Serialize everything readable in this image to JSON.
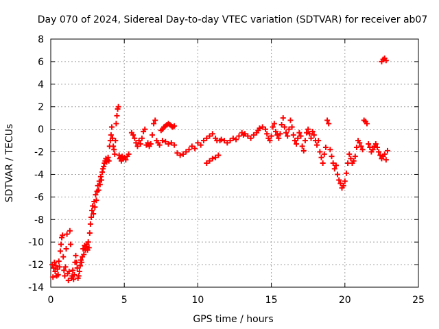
{
  "chart_data": {
    "type": "scatter",
    "title": "Day 070 of 2024, Sidereal Day-to-day VTEC variation (SDTVAR) for receiver ab07",
    "xlabel": "GPS time / hours",
    "ylabel": "SDTVAR / TECUs",
    "xlim": [
      0,
      25
    ],
    "ylim": [
      -14,
      8
    ],
    "xticks": [
      0,
      5,
      10,
      15,
      20,
      25
    ],
    "yticks": [
      -14,
      -12,
      -10,
      -8,
      -6,
      -4,
      -2,
      0,
      2,
      4,
      6,
      8
    ],
    "grid": true,
    "marker": "plus",
    "color": "#ff0000",
    "series": [
      {
        "name": "SDTVAR",
        "points": [
          [
            0.1,
            -12.0
          ],
          [
            0.15,
            -13.1
          ],
          [
            0.2,
            -12.3
          ],
          [
            0.25,
            -11.8
          ],
          [
            0.3,
            -12.6
          ],
          [
            0.35,
            -12.1
          ],
          [
            0.4,
            -13.0
          ],
          [
            0.45,
            -12.4
          ],
          [
            0.5,
            -12.9
          ],
          [
            0.55,
            -11.7
          ],
          [
            0.6,
            -12.2
          ],
          [
            0.65,
            -10.8
          ],
          [
            0.7,
            -10.2
          ],
          [
            0.75,
            -9.6
          ],
          [
            0.8,
            -9.4
          ],
          [
            0.85,
            -11.3
          ],
          [
            0.9,
            -12.5
          ],
          [
            0.95,
            -13.0
          ],
          [
            1.0,
            -12.2
          ],
          [
            1.05,
            -10.6
          ],
          [
            1.1,
            -9.3
          ],
          [
            1.15,
            -12.8
          ],
          [
            1.2,
            -13.4
          ],
          [
            1.25,
            -12.6
          ],
          [
            1.3,
            -9.0
          ],
          [
            1.35,
            -10.2
          ],
          [
            1.4,
            -13.2
          ],
          [
            1.45,
            -13.0
          ],
          [
            1.5,
            -12.5
          ],
          [
            1.55,
            -13.3
          ],
          [
            1.6,
            -12.9
          ],
          [
            1.65,
            -11.8
          ],
          [
            1.7,
            -11.2
          ],
          [
            1.75,
            -11.8
          ],
          [
            1.8,
            -12.3
          ],
          [
            1.85,
            -13.2
          ],
          [
            1.9,
            -13.0
          ],
          [
            1.95,
            -12.6
          ],
          [
            2.0,
            -12.1
          ],
          [
            2.05,
            -11.6
          ],
          [
            2.1,
            -11.8
          ],
          [
            2.15,
            -11.3
          ],
          [
            2.2,
            -10.6
          ],
          [
            2.25,
            -11.1
          ],
          [
            2.3,
            -10.3
          ],
          [
            2.35,
            -10.7
          ],
          [
            2.4,
            -10.4
          ],
          [
            2.45,
            -10.2
          ],
          [
            2.5,
            -10.7
          ],
          [
            2.55,
            -10.0
          ],
          [
            2.6,
            -10.5
          ],
          [
            2.65,
            -9.2
          ],
          [
            2.7,
            -8.4
          ],
          [
            2.75,
            -7.8
          ],
          [
            2.8,
            -7.2
          ],
          [
            2.85,
            -6.8
          ],
          [
            2.9,
            -7.5
          ],
          [
            2.95,
            -6.4
          ],
          [
            3.0,
            -6.9
          ],
          [
            3.05,
            -5.8
          ],
          [
            3.1,
            -6.3
          ],
          [
            3.15,
            -5.5
          ],
          [
            3.2,
            -5.0
          ],
          [
            3.25,
            -5.4
          ],
          [
            3.3,
            -4.6
          ],
          [
            3.35,
            -4.9
          ],
          [
            3.4,
            -4.2
          ],
          [
            3.45,
            -4.5
          ],
          [
            3.5,
            -3.8
          ],
          [
            3.55,
            -3.5
          ],
          [
            3.6,
            -3.3
          ],
          [
            3.65,
            -3.0
          ],
          [
            3.7,
            -2.8
          ],
          [
            3.75,
            -2.6
          ],
          [
            3.8,
            -2.9
          ],
          [
            3.85,
            -2.7
          ],
          [
            3.9,
            -2.5
          ],
          [
            3.95,
            -2.8
          ],
          [
            4.0,
            -1.5
          ],
          [
            4.05,
            -1.0
          ],
          [
            4.1,
            -0.5
          ],
          [
            4.15,
            0.2
          ],
          [
            4.2,
            -0.8
          ],
          [
            4.25,
            -1.5
          ],
          [
            4.3,
            -1.8
          ],
          [
            4.35,
            -2.2
          ],
          [
            4.4,
            -1.0
          ],
          [
            4.45,
            0.5
          ],
          [
            4.5,
            1.2
          ],
          [
            4.55,
            1.8
          ],
          [
            4.6,
            2.0
          ],
          [
            4.65,
            -2.3
          ],
          [
            4.7,
            -2.6
          ],
          [
            4.75,
            -2.5
          ],
          [
            4.8,
            -2.8
          ],
          [
            4.85,
            -2.4
          ],
          [
            4.9,
            -2.6
          ],
          [
            5.0,
            -2.5
          ],
          [
            5.1,
            -2.7
          ],
          [
            5.2,
            -2.4
          ],
          [
            5.3,
            -2.2
          ],
          [
            5.5,
            -0.3
          ],
          [
            5.6,
            -0.5
          ],
          [
            5.7,
            -0.8
          ],
          [
            5.8,
            -1.2
          ],
          [
            5.9,
            -1.5
          ],
          [
            6.0,
            -1.0
          ],
          [
            6.1,
            -1.3
          ],
          [
            6.2,
            -0.8
          ],
          [
            6.3,
            -0.2
          ],
          [
            6.4,
            0.0
          ],
          [
            6.5,
            -1.4
          ],
          [
            6.6,
            -1.2
          ],
          [
            6.7,
            -1.5
          ],
          [
            6.8,
            -1.3
          ],
          [
            6.9,
            -0.5
          ],
          [
            7.0,
            0.5
          ],
          [
            7.1,
            0.8
          ],
          [
            7.2,
            -1.0
          ],
          [
            7.3,
            -1.2
          ],
          [
            7.4,
            -1.4
          ],
          [
            7.5,
            -0.1
          ],
          [
            7.6,
            0.0
          ],
          [
            7.7,
            0.2
          ],
          [
            7.8,
            0.3
          ],
          [
            7.9,
            0.4
          ],
          [
            8.0,
            0.5
          ],
          [
            8.1,
            0.4
          ],
          [
            8.2,
            0.3
          ],
          [
            8.3,
            0.2
          ],
          [
            8.4,
            0.3
          ],
          [
            7.6,
            -1.0
          ],
          [
            7.8,
            -1.1
          ],
          [
            8.0,
            -1.3
          ],
          [
            8.2,
            -1.2
          ],
          [
            8.4,
            -1.4
          ],
          [
            8.6,
            -2.1
          ],
          [
            8.8,
            -2.3
          ],
          [
            9.0,
            -2.2
          ],
          [
            9.2,
            -2.0
          ],
          [
            9.4,
            -1.8
          ],
          [
            9.6,
            -1.5
          ],
          [
            9.8,
            -1.7
          ],
          [
            10.0,
            -1.2
          ],
          [
            10.2,
            -1.4
          ],
          [
            10.4,
            -1.0
          ],
          [
            10.6,
            -0.8
          ],
          [
            10.8,
            -0.6
          ],
          [
            11.0,
            -0.4
          ],
          [
            11.2,
            -0.8
          ],
          [
            11.3,
            -1.0
          ],
          [
            10.6,
            -3.0
          ],
          [
            10.8,
            -2.8
          ],
          [
            11.0,
            -2.6
          ],
          [
            11.2,
            -2.5
          ],
          [
            11.4,
            -2.3
          ],
          [
            11.5,
            -1.0
          ],
          [
            11.6,
            -0.9
          ],
          [
            11.8,
            -1.0
          ],
          [
            12.0,
            -1.2
          ],
          [
            12.2,
            -1.0
          ],
          [
            12.4,
            -0.8
          ],
          [
            12.6,
            -0.9
          ],
          [
            12.8,
            -0.6
          ],
          [
            13.0,
            -0.3
          ],
          [
            13.1,
            -0.5
          ],
          [
            13.2,
            -0.4
          ],
          [
            13.4,
            -0.6
          ],
          [
            13.6,
            -0.8
          ],
          [
            13.8,
            -0.5
          ],
          [
            14.0,
            -0.3
          ],
          [
            14.1,
            -0.1
          ],
          [
            14.2,
            0.1
          ],
          [
            14.4,
            0.2
          ],
          [
            14.6,
            0.0
          ],
          [
            14.7,
            -0.4
          ],
          [
            14.8,
            -0.8
          ],
          [
            14.9,
            -1.0
          ],
          [
            15.0,
            -0.6
          ],
          [
            15.1,
            0.2
          ],
          [
            15.2,
            0.5
          ],
          [
            15.3,
            -0.2
          ],
          [
            15.4,
            -0.5
          ],
          [
            15.5,
            -0.8
          ],
          [
            15.6,
            -0.4
          ],
          [
            15.7,
            0.4
          ],
          [
            15.8,
            1.0
          ],
          [
            15.9,
            0.2
          ],
          [
            16.0,
            -0.3
          ],
          [
            16.1,
            -0.6
          ],
          [
            16.2,
            0.0
          ],
          [
            16.3,
            0.8
          ],
          [
            16.4,
            0.2
          ],
          [
            16.5,
            -0.5
          ],
          [
            16.6,
            -1.0
          ],
          [
            16.7,
            -1.3
          ],
          [
            16.8,
            -0.8
          ],
          [
            16.9,
            -0.3
          ],
          [
            17.0,
            -0.6
          ],
          [
            17.1,
            -1.5
          ],
          [
            17.2,
            -1.9
          ],
          [
            17.3,
            -1.0
          ],
          [
            17.4,
            -0.3
          ],
          [
            17.5,
            0.0
          ],
          [
            17.6,
            -0.4
          ],
          [
            17.7,
            -0.8
          ],
          [
            17.8,
            -0.2
          ],
          [
            17.9,
            -0.5
          ],
          [
            18.0,
            -1.0
          ],
          [
            18.1,
            -1.4
          ],
          [
            18.2,
            -1.0
          ],
          [
            18.3,
            -2.0
          ],
          [
            18.4,
            -2.5
          ],
          [
            18.5,
            -3.0
          ],
          [
            18.6,
            -2.2
          ],
          [
            18.7,
            -1.6
          ],
          [
            18.8,
            0.8
          ],
          [
            18.9,
            0.5
          ],
          [
            19.0,
            -1.8
          ],
          [
            19.1,
            -2.4
          ],
          [
            19.2,
            -3.0
          ],
          [
            19.3,
            -3.5
          ],
          [
            19.4,
            -3.2
          ],
          [
            19.5,
            -4.0
          ],
          [
            19.6,
            -4.5
          ],
          [
            19.7,
            -4.8
          ],
          [
            19.8,
            -5.2
          ],
          [
            19.9,
            -5.0
          ],
          [
            20.0,
            -4.6
          ],
          [
            20.1,
            -3.9
          ],
          [
            20.2,
            -3.0
          ],
          [
            20.3,
            -2.2
          ],
          [
            20.4,
            -2.6
          ],
          [
            20.5,
            -3.0
          ],
          [
            20.6,
            -2.8
          ],
          [
            20.7,
            -2.4
          ],
          [
            20.8,
            -1.6
          ],
          [
            20.9,
            -1.0
          ],
          [
            21.0,
            -1.2
          ],
          [
            21.1,
            -1.5
          ],
          [
            21.2,
            -1.8
          ],
          [
            21.3,
            0.8
          ],
          [
            21.4,
            0.7
          ],
          [
            21.5,
            0.5
          ],
          [
            21.6,
            -1.3
          ],
          [
            21.7,
            -1.6
          ],
          [
            21.8,
            -2.0
          ],
          [
            21.9,
            -1.8
          ],
          [
            22.0,
            -1.5
          ],
          [
            22.1,
            -1.3
          ],
          [
            22.2,
            -1.6
          ],
          [
            22.3,
            -2.0
          ],
          [
            22.4,
            -2.3
          ],
          [
            22.5,
            -2.6
          ],
          [
            22.6,
            -2.4
          ],
          [
            22.7,
            -2.2
          ],
          [
            22.8,
            -2.7
          ],
          [
            22.9,
            -1.9
          ],
          [
            22.5,
            6.0
          ],
          [
            22.6,
            6.2
          ],
          [
            22.7,
            6.3
          ],
          [
            22.8,
            6.1
          ]
        ]
      }
    ]
  }
}
